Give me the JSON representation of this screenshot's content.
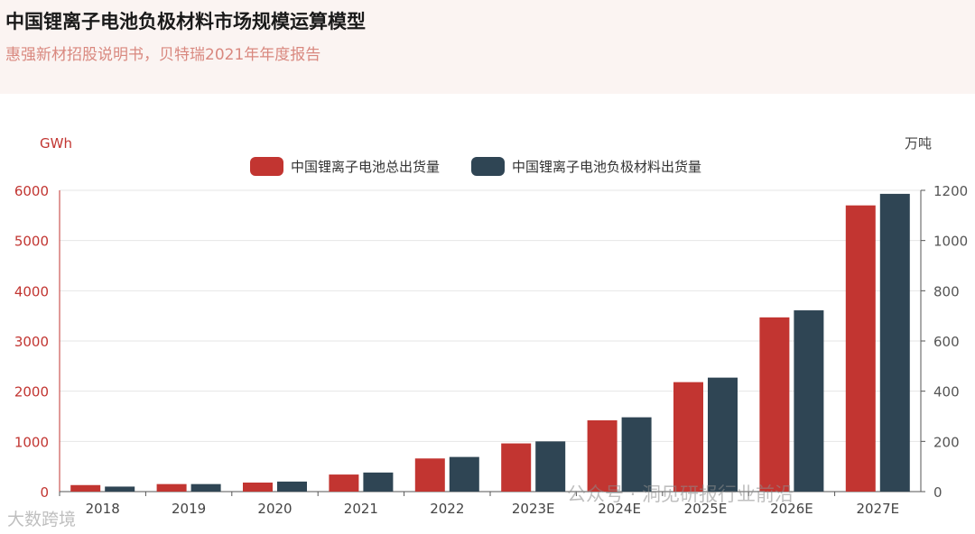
{
  "header": {
    "title": "中国锂离子电池负极材料市场规模运算模型",
    "subtitle": "惠强新材招股说明书，贝特瑞2021年年度报告"
  },
  "watermarks": {
    "wechat": "公众号 · 洞见研报行业前沿",
    "brand": "大数跨境"
  },
  "colors": {
    "series1": "#c23531",
    "series2": "#2f4554",
    "left_axis": "#c23531",
    "grid": "#e6e6e6",
    "header_bg": "#fbf4f2"
  },
  "chart_data": {
    "type": "bar",
    "categories": [
      "2018",
      "2019",
      "2020",
      "2021",
      "2022",
      "2023E",
      "2024E",
      "2025E",
      "2026E",
      "2027E"
    ],
    "y_left": {
      "label": "GWh",
      "ylim": [
        0,
        6000
      ],
      "ticks": [
        0,
        1000,
        2000,
        3000,
        4000,
        5000,
        6000
      ]
    },
    "y_right": {
      "label": "万吨",
      "ylim": [
        0,
        1200
      ],
      "ticks": [
        0,
        200,
        400,
        600,
        800,
        1000,
        1200
      ]
    },
    "legend_position": "top-center",
    "grid": true,
    "series": [
      {
        "name": "中国锂离子电池总出货量",
        "axis": "left",
        "values": [
          130,
          150,
          180,
          340,
          660,
          960,
          1420,
          2180,
          3470,
          5700
        ]
      },
      {
        "name": "中国锂离子电池负极材料出货量",
        "axis": "right",
        "values": [
          20,
          30,
          40,
          76,
          138,
          200,
          296,
          454,
          722,
          1186
        ]
      }
    ]
  }
}
